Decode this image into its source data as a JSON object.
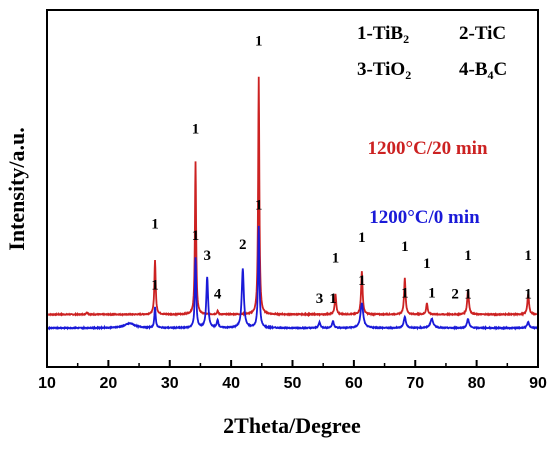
{
  "chart_data": {
    "type": "line",
    "xlabel": "2Theta/Degree",
    "ylabel": "Intensity/a.u.",
    "xlim": [
      10,
      90
    ],
    "xticks": [
      "10",
      "20",
      "30",
      "40",
      "50",
      "60",
      "70",
      "80",
      "90"
    ],
    "yticks": false,
    "grid": false,
    "legend_lines": [
      [
        "1-TiB",
        "2",
        "2-TiC",
        ""
      ],
      [
        "3-TiO",
        "2",
        "4-B",
        "4C"
      ]
    ],
    "series": [
      {
        "name": "1200°C/20 min",
        "color": "#cc2222",
        "baseline": 0.12,
        "noise": 0.004,
        "peaks": [
          {
            "x": 16.5,
            "h": 0.02,
            "w": 0.25
          },
          {
            "x": 27.6,
            "h": 0.48,
            "w": 0.22
          },
          {
            "x": 34.2,
            "h": 1.35,
            "w": 0.2
          },
          {
            "x": 37.8,
            "h": 0.03,
            "w": 0.2
          },
          {
            "x": 44.5,
            "h": 2.1,
            "w": 0.2
          },
          {
            "x": 57.0,
            "h": 0.18,
            "w": 0.25
          },
          {
            "x": 61.3,
            "h": 0.38,
            "w": 0.25
          },
          {
            "x": 68.3,
            "h": 0.32,
            "w": 0.25
          },
          {
            "x": 71.9,
            "h": 0.1,
            "w": 0.25
          },
          {
            "x": 78.6,
            "h": 0.22,
            "w": 0.28
          },
          {
            "x": 88.4,
            "h": 0.18,
            "w": 0.28
          }
        ]
      },
      {
        "name": "1200°C/0 min",
        "color": "#1a1ad8",
        "baseline": 0.0,
        "noise": 0.004,
        "peaks": [
          {
            "x": 23.5,
            "h": 0.04,
            "w": 1.8
          },
          {
            "x": 27.6,
            "h": 0.18,
            "w": 0.22
          },
          {
            "x": 34.2,
            "h": 0.62,
            "w": 0.22
          },
          {
            "x": 36.1,
            "h": 0.45,
            "w": 0.3
          },
          {
            "x": 37.8,
            "h": 0.07,
            "w": 0.25
          },
          {
            "x": 41.9,
            "h": 0.52,
            "w": 0.35
          },
          {
            "x": 44.5,
            "h": 0.9,
            "w": 0.22
          },
          {
            "x": 54.4,
            "h": 0.05,
            "w": 0.3
          },
          {
            "x": 56.6,
            "h": 0.06,
            "w": 0.3
          },
          {
            "x": 61.3,
            "h": 0.22,
            "w": 0.45
          },
          {
            "x": 68.3,
            "h": 0.1,
            "w": 0.35
          },
          {
            "x": 72.7,
            "h": 0.08,
            "w": 0.5
          },
          {
            "x": 78.6,
            "h": 0.08,
            "w": 0.35
          },
          {
            "x": 88.4,
            "h": 0.05,
            "w": 0.35
          }
        ]
      }
    ],
    "annotations": [
      {
        "text": "1",
        "x": 27.6,
        "y": 0.88,
        "color": "#000000"
      },
      {
        "text": "1",
        "x": 34.2,
        "y": 1.72,
        "color": "#000000"
      },
      {
        "text": "1",
        "x": 44.5,
        "y": 2.5,
        "color": "#000000"
      },
      {
        "text": "1",
        "x": 57.0,
        "y": 0.58,
        "color": "#000000"
      },
      {
        "text": "1",
        "x": 61.3,
        "y": 0.76,
        "color": "#000000"
      },
      {
        "text": "1",
        "x": 68.3,
        "y": 0.68,
        "color": "#000000"
      },
      {
        "text": "1",
        "x": 71.9,
        "y": 0.53,
        "color": "#000000"
      },
      {
        "text": "1",
        "x": 78.6,
        "y": 0.6,
        "color": "#000000"
      },
      {
        "text": "1",
        "x": 88.4,
        "y": 0.6,
        "color": "#000000"
      },
      {
        "text": "1",
        "x": 27.6,
        "y": 0.34,
        "color": "#000000"
      },
      {
        "text": "1",
        "x": 34.2,
        "y": 0.78,
        "color": "#000000"
      },
      {
        "text": "3",
        "x": 36.1,
        "y": 0.6,
        "color": "#000000"
      },
      {
        "text": "4",
        "x": 37.8,
        "y": 0.26,
        "color": "#000000"
      },
      {
        "text": "2",
        "x": 41.9,
        "y": 0.7,
        "color": "#000000"
      },
      {
        "text": "1",
        "x": 44.5,
        "y": 1.05,
        "color": "#000000"
      },
      {
        "text": "3",
        "x": 54.4,
        "y": 0.22,
        "color": "#000000"
      },
      {
        "text": "1",
        "x": 56.6,
        "y": 0.22,
        "color": "#000000"
      },
      {
        "text": "1",
        "x": 61.3,
        "y": 0.38,
        "color": "#000000"
      },
      {
        "text": "1",
        "x": 68.3,
        "y": 0.27,
        "color": "#000000"
      },
      {
        "text": "1",
        "x": 72.7,
        "y": 0.27,
        "color": "#000000"
      },
      {
        "text": "2",
        "x": 76.5,
        "y": 0.26,
        "color": "#000000"
      },
      {
        "text": "1",
        "x": 78.6,
        "y": 0.26,
        "color": "#000000"
      },
      {
        "text": "1",
        "x": 88.4,
        "y": 0.26,
        "color": "#000000"
      },
      {
        "text": "1200°C/20 min",
        "x": 72.0,
        "y": 1.54,
        "color": "#cc2222",
        "size": 19
      },
      {
        "text": "1200°C/0 min",
        "x": 71.5,
        "y": 0.93,
        "color": "#1a1ad8",
        "size": 19
      }
    ]
  }
}
